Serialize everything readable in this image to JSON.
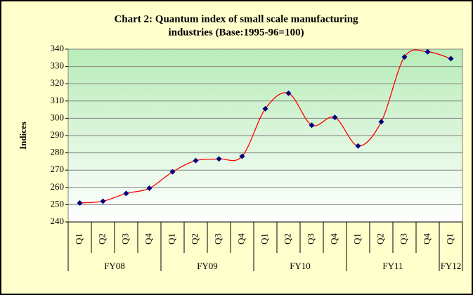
{
  "chart_data": {
    "type": "line",
    "title": [
      "Chart 2: Quantum index of small scale manufacturing",
      "industries (Base:1995-96=100)"
    ],
    "y_label": "Indices",
    "groups": [
      {
        "name": "FY08",
        "categories": [
          "Q1",
          "Q2",
          "Q3",
          "Q4"
        ]
      },
      {
        "name": "FY09",
        "categories": [
          "Q1",
          "Q2",
          "Q3",
          "Q4"
        ]
      },
      {
        "name": "FY10",
        "categories": [
          "Q1",
          "Q2",
          "Q3",
          "Q4"
        ]
      },
      {
        "name": "FY11",
        "categories": [
          "Q1",
          "Q2",
          "Q3",
          "Q4"
        ]
      },
      {
        "name": "FY12",
        "categories": [
          "Q1"
        ]
      }
    ],
    "values": [
      251,
      252,
      256.5,
      259.5,
      269,
      275.5,
      276.5,
      278,
      305.5,
      314.5,
      296,
      300.5,
      284,
      298,
      335.5,
      338.5,
      334.5
    ],
    "color": "#ff0000",
    "marker_color": "#000080",
    "ylim": [
      240,
      340
    ],
    "yticks": [
      240,
      250,
      260,
      270,
      280,
      290,
      300,
      310,
      320,
      330,
      340
    ],
    "grid": true
  }
}
